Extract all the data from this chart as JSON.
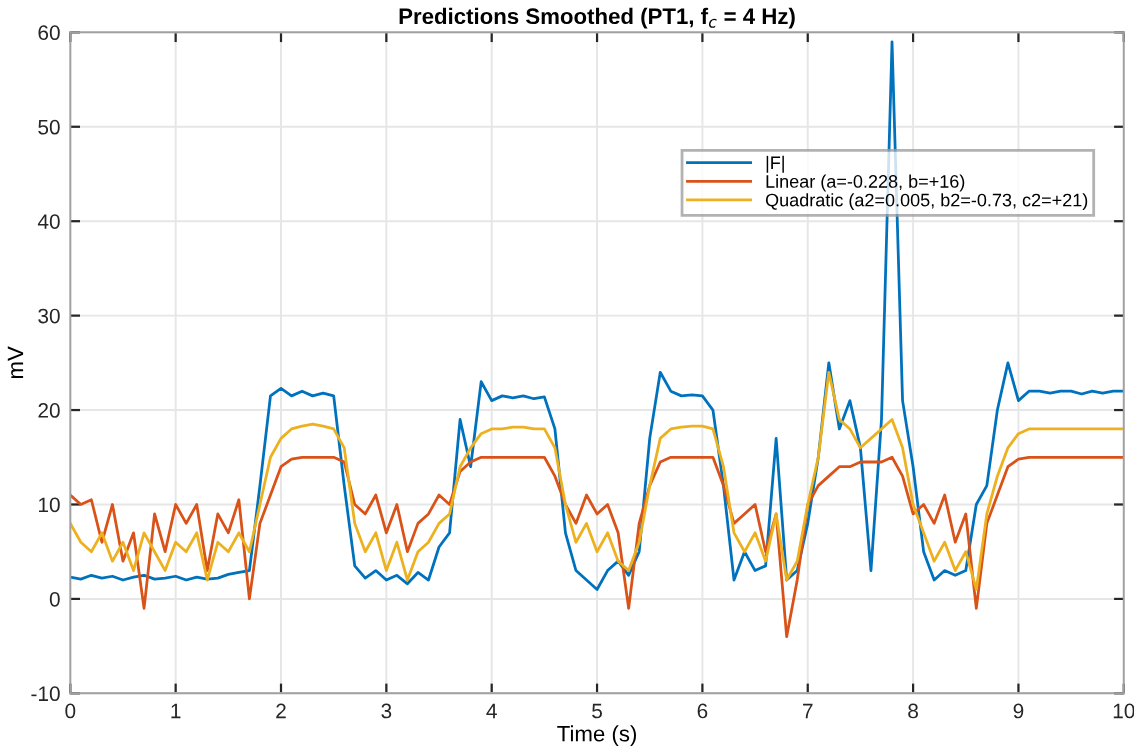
{
  "chart_data": {
    "type": "line",
    "title": "Predictions Smoothed (PT1, f$_{c}$ = 4 Hz)",
    "xlabel": "Time (s)",
    "ylabel": "mV",
    "x": [
      0,
      0.1,
      0.2,
      0.3,
      0.4,
      0.5,
      0.6,
      0.7,
      0.8,
      0.9,
      1,
      1.1,
      1.2,
      1.3,
      1.4,
      1.5,
      1.6,
      1.7,
      1.8,
      1.9,
      2,
      2.1,
      2.2,
      2.3,
      2.4,
      2.5,
      2.6,
      2.7,
      2.8,
      2.9,
      3,
      3.1,
      3.2,
      3.3,
      3.4,
      3.5,
      3.6,
      3.7,
      3.8,
      3.9,
      4,
      4.1,
      4.2,
      4.3,
      4.4,
      4.5,
      4.6,
      4.7,
      4.8,
      4.9,
      5,
      5.1,
      5.2,
      5.3,
      5.4,
      5.5,
      5.6,
      5.7,
      5.8,
      5.9,
      6,
      6.1,
      6.2,
      6.3,
      6.4,
      6.5,
      6.6,
      6.7,
      6.8,
      6.9,
      7,
      7.1,
      7.2,
      7.3,
      7.4,
      7.5,
      7.6,
      7.7,
      7.8,
      7.9,
      8,
      8.1,
      8.2,
      8.3,
      8.4,
      8.5,
      8.6,
      8.7,
      8.8,
      8.9,
      9,
      9.1,
      9.2,
      9.3,
      9.4,
      9.5,
      9.6,
      9.7,
      9.8,
      9.9,
      10
    ],
    "series": [
      {
        "name": "|F|",
        "color": "#0072bd",
        "values": [
          2.3,
          2.1,
          2.5,
          2.2,
          2.4,
          2.0,
          2.3,
          2.5,
          2.1,
          2.2,
          2.4,
          2.0,
          2.3,
          2.1,
          2.2,
          2.6,
          2.8,
          3.0,
          12,
          21.5,
          22.3,
          21.5,
          22,
          21.5,
          21.8,
          21.5,
          12,
          3.5,
          2.2,
          3.0,
          2.0,
          2.5,
          1.6,
          2.8,
          2.0,
          5.5,
          7,
          19,
          14,
          23,
          21,
          21.5,
          21.3,
          21.5,
          21.2,
          21.4,
          18,
          7,
          3,
          2,
          1,
          3,
          4,
          2.5,
          5,
          17,
          24,
          22,
          21.5,
          21.6,
          21.5,
          20,
          12,
          2,
          5,
          3,
          3.5,
          17,
          2,
          3,
          8,
          15,
          25,
          18,
          21,
          16,
          3,
          19,
          59,
          21,
          14,
          5,
          2,
          3,
          2.5,
          3,
          10,
          12,
          20,
          25,
          21,
          22,
          22,
          21.8,
          22,
          22,
          21.7,
          22,
          21.8,
          22,
          22
        ]
      },
      {
        "name": "Linear (a=-0.228, b=+16)",
        "color": "#d95319",
        "values": [
          11,
          10,
          10.5,
          6,
          10,
          4,
          7,
          -1,
          9,
          5,
          10,
          8,
          10,
          3,
          9,
          7,
          10.5,
          0,
          8,
          11,
          14,
          14.8,
          15,
          15,
          15,
          15,
          14.5,
          10,
          9,
          11,
          7,
          10,
          5,
          8,
          9,
          11,
          10,
          13.5,
          14.5,
          15,
          15,
          15,
          15,
          15,
          15,
          15,
          13,
          10,
          8,
          11,
          9,
          10,
          7,
          -1,
          8,
          12,
          14.5,
          15,
          15,
          15,
          15,
          15,
          12,
          8,
          9,
          10,
          5,
          9,
          -4,
          2,
          10,
          12,
          13,
          14,
          14,
          14.5,
          14.5,
          14.5,
          15,
          13,
          9,
          10,
          8,
          11,
          6,
          9,
          -1,
          8,
          11,
          14,
          14.8,
          15,
          15,
          15,
          15,
          15,
          15,
          15,
          15,
          15,
          15
        ]
      },
      {
        "name": "Quadratic (a2=0.005, b2=-0.73, c2=+21)",
        "color": "#edb120",
        "values": [
          8,
          6,
          5,
          7,
          4,
          6,
          3,
          7,
          5,
          3,
          6,
          5,
          7,
          2,
          6,
          5,
          7,
          5,
          10,
          15,
          17,
          18,
          18.3,
          18.5,
          18.3,
          18,
          16,
          8,
          5,
          7,
          3,
          6,
          2,
          5,
          6,
          8,
          9,
          14,
          16,
          17.5,
          18,
          18,
          18.2,
          18.2,
          18,
          18,
          16,
          10,
          6,
          8,
          5,
          7,
          4,
          3,
          6,
          12,
          17,
          18,
          18.2,
          18.3,
          18.3,
          18,
          14,
          7,
          5,
          7,
          4,
          9,
          2,
          4,
          10,
          15,
          24,
          19,
          18,
          16,
          17,
          18,
          19,
          16,
          10,
          7,
          4,
          6,
          3,
          5,
          1,
          9,
          13,
          16,
          17.5,
          18,
          18,
          18,
          18,
          18,
          18,
          18,
          18,
          18,
          18
        ]
      }
    ],
    "xlim": [
      0,
      10
    ],
    "xticks": [
      0,
      1,
      2,
      3,
      4,
      5,
      6,
      7,
      8,
      9,
      10
    ],
    "ylim": [
      -10,
      60
    ],
    "yticks": [
      -10,
      0,
      10,
      20,
      30,
      40,
      50,
      60
    ],
    "grid": true,
    "legend": "top right",
    "marker": "none",
    "line_style": "solid"
  }
}
